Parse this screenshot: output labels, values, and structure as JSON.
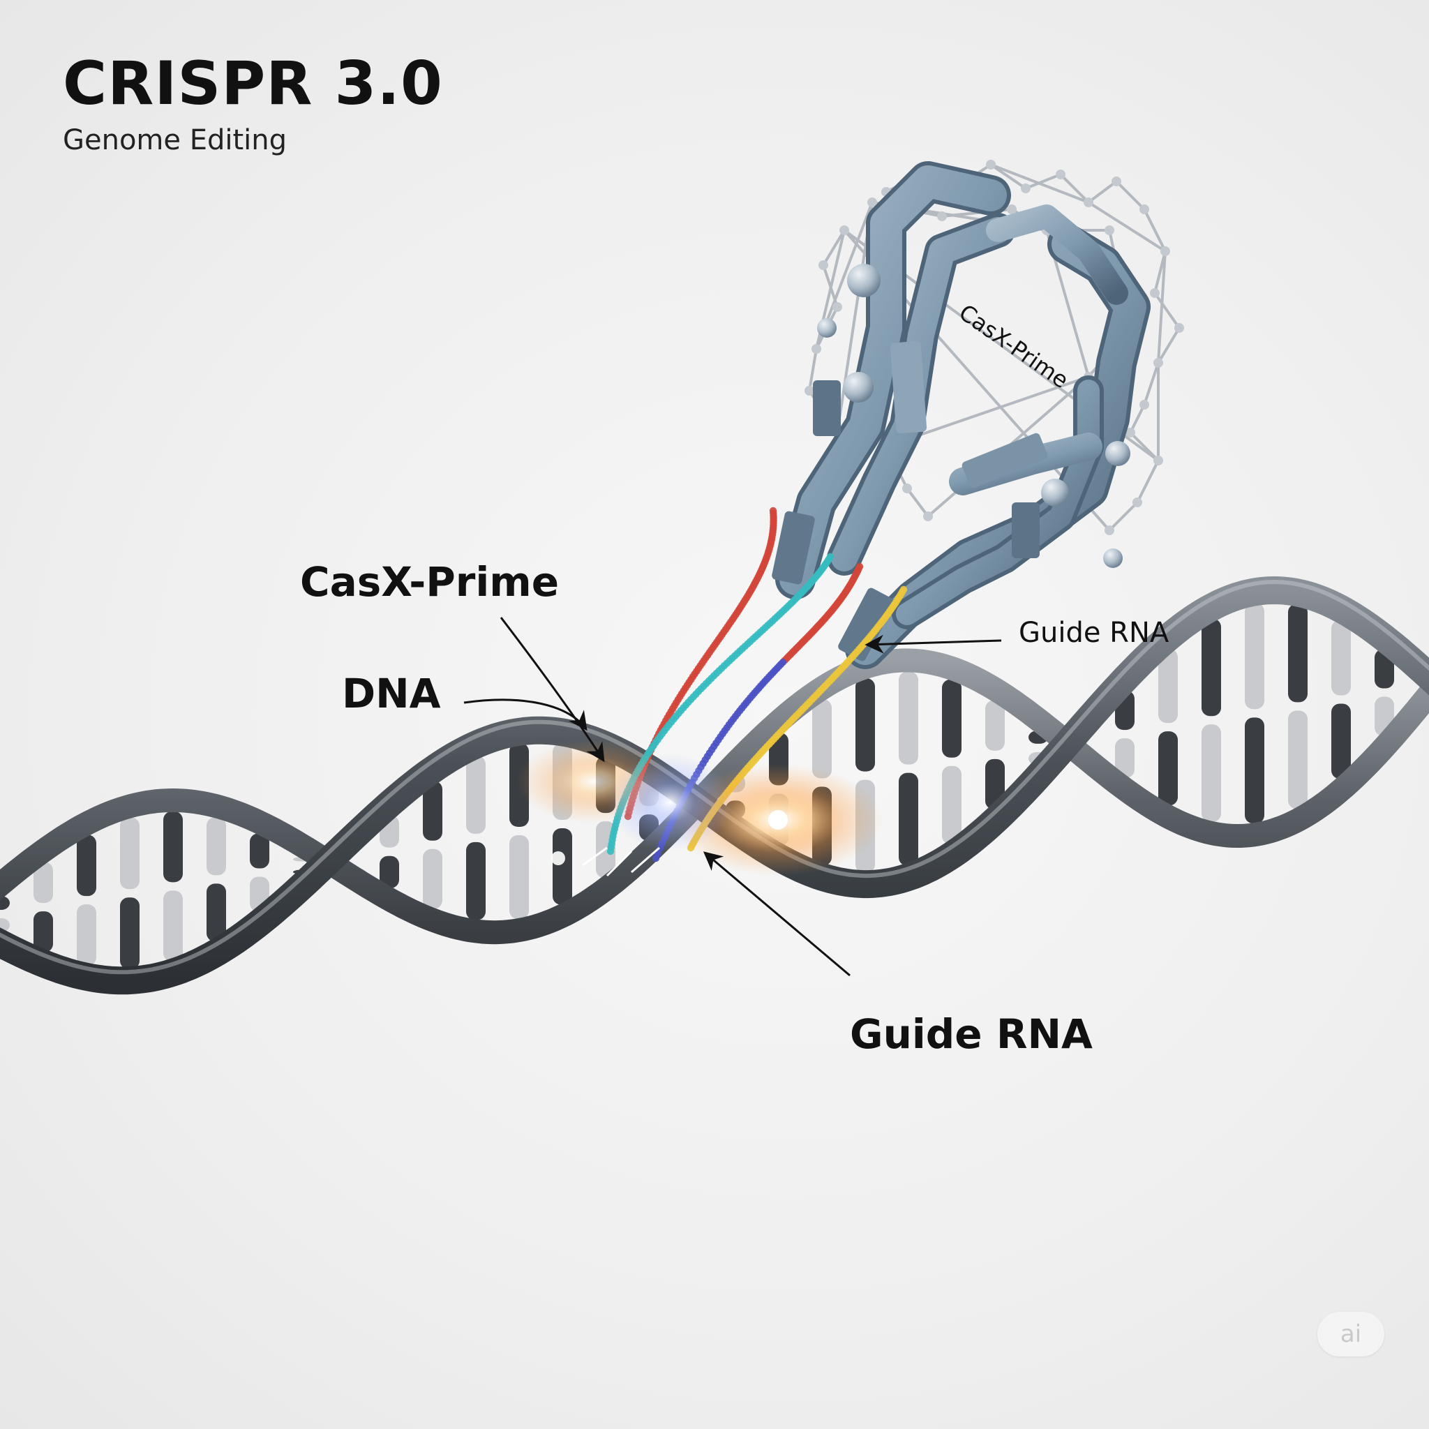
{
  "header": {
    "title": "CRISPR 3.0",
    "subtitle": "Genome Editing"
  },
  "labels": {
    "protein_inline": "CasX-Prime",
    "casx_prime": "CasX-Prime",
    "dna": "DNA",
    "guide_rna_upper": "Guide RNA",
    "guide_rna_lower": "Guide RNA"
  },
  "badge": {
    "text": "ai"
  },
  "colors": {
    "background": "#efefef",
    "dna_backbone": "#4a5056",
    "base_dark": "#3a3d42",
    "base_light": "#c8cacd",
    "protein": "#7f99ae",
    "protein_dark": "#4e6478",
    "rna_red": "#d2453a",
    "rna_teal": "#36bcc0",
    "rna_blue": "#4b52c4",
    "rna_yellow": "#ecc63b",
    "glow": "#ff9b3d",
    "text": "#111111"
  },
  "icons": {
    "badge": "ai-badge-icon"
  }
}
